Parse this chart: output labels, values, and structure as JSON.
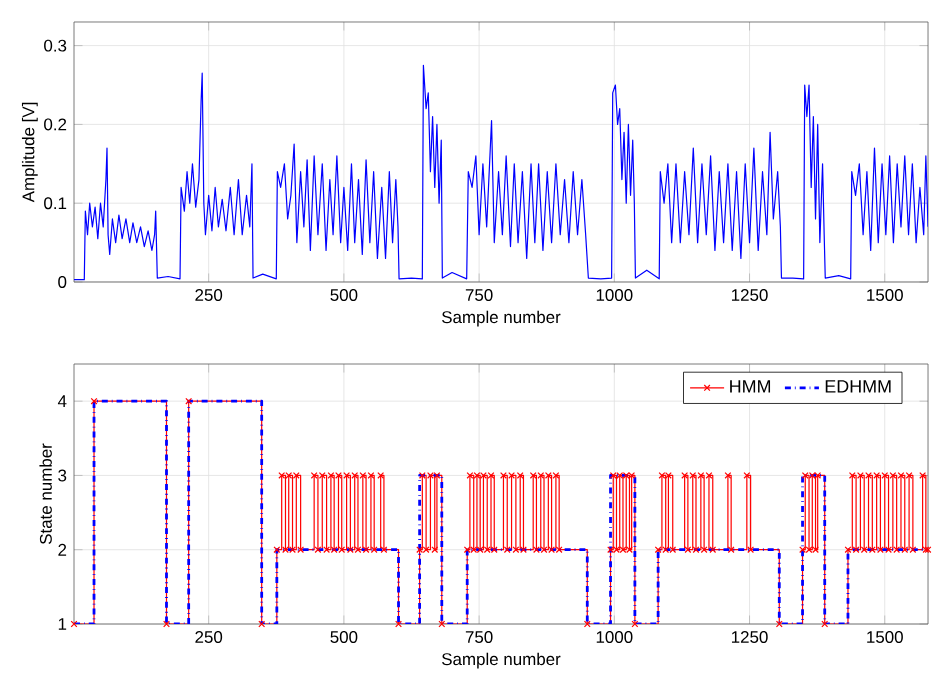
{
  "chart_data": [
    {
      "type": "line",
      "xlabel": "Sample number",
      "ylabel": "Amplitude [V]",
      "color": "#0000ff",
      "xlim": [
        1,
        1580
      ],
      "ylim": [
        0,
        0.33
      ],
      "xticks": [
        250,
        500,
        750,
        1000,
        1250,
        1500
      ],
      "yticks": [
        0,
        0.1,
        0.2,
        0.3
      ],
      "grid": true,
      "x": [
        1,
        20,
        22,
        26,
        30,
        35,
        40,
        45,
        50,
        55,
        60,
        62,
        64,
        67,
        72,
        78,
        84,
        90,
        97,
        104,
        110,
        117,
        124,
        131,
        138,
        145,
        150,
        152,
        155,
        175,
        197,
        199,
        205,
        210,
        215,
        220,
        226,
        232,
        236,
        238,
        241,
        244,
        250,
        256,
        262,
        268,
        275,
        282,
        290,
        297,
        305,
        312,
        320,
        326,
        330,
        332,
        350,
        375,
        377,
        383,
        390,
        396,
        402,
        408,
        413,
        420,
        426,
        432,
        438,
        445,
        452,
        460,
        467,
        474,
        480,
        487,
        494,
        500,
        507,
        514,
        520,
        527,
        534,
        541,
        548,
        555,
        562,
        570,
        577,
        584,
        590,
        596,
        600,
        602,
        625,
        645,
        647,
        652,
        656,
        660,
        664,
        668,
        672,
        676,
        680,
        682,
        700,
        727,
        730,
        737,
        744,
        750,
        757,
        764,
        773,
        778,
        786,
        793,
        800,
        808,
        815,
        822,
        830,
        838,
        846,
        853,
        860,
        868,
        876,
        884,
        892,
        900,
        908,
        916,
        924,
        932,
        940,
        947,
        952,
        975,
        995,
        997,
        1002,
        1006,
        1010,
        1014,
        1018,
        1022,
        1026,
        1030,
        1034,
        1037,
        1039,
        1060,
        1083,
        1085,
        1092,
        1099,
        1106,
        1114,
        1122,
        1130,
        1138,
        1146,
        1154,
        1162,
        1170,
        1178,
        1186,
        1194,
        1202,
        1210,
        1218,
        1226,
        1234,
        1242,
        1250,
        1258,
        1266,
        1274,
        1282,
        1288,
        1294,
        1302,
        1307,
        1309,
        1330,
        1350,
        1352,
        1356,
        1360,
        1364,
        1368,
        1372,
        1376,
        1380,
        1385,
        1388,
        1390,
        1415,
        1437,
        1439,
        1446,
        1453,
        1460,
        1467,
        1474,
        1481,
        1488,
        1495,
        1502,
        1509,
        1516,
        1523,
        1530,
        1537,
        1544,
        1551,
        1558,
        1565,
        1572,
        1576,
        1580
      ],
      "values": [
        0.003,
        0.003,
        0.09,
        0.06,
        0.1,
        0.07,
        0.095,
        0.055,
        0.1,
        0.07,
        0.13,
        0.17,
        0.06,
        0.035,
        0.08,
        0.05,
        0.085,
        0.055,
        0.08,
        0.05,
        0.075,
        0.05,
        0.07,
        0.045,
        0.065,
        0.04,
        0.06,
        0.09,
        0.005,
        0.007,
        0.004,
        0.12,
        0.09,
        0.14,
        0.1,
        0.15,
        0.095,
        0.13,
        0.23,
        0.265,
        0.1,
        0.06,
        0.11,
        0.065,
        0.12,
        0.07,
        0.105,
        0.065,
        0.12,
        0.06,
        0.13,
        0.06,
        0.11,
        0.07,
        0.15,
        0.005,
        0.01,
        0.004,
        0.14,
        0.12,
        0.15,
        0.08,
        0.11,
        0.175,
        0.05,
        0.14,
        0.07,
        0.155,
        0.04,
        0.16,
        0.06,
        0.15,
        0.04,
        0.13,
        0.06,
        0.16,
        0.05,
        0.12,
        0.04,
        0.15,
        0.05,
        0.13,
        0.035,
        0.155,
        0.05,
        0.14,
        0.03,
        0.12,
        0.03,
        0.14,
        0.05,
        0.13,
        0.07,
        0.004,
        0.005,
        0.004,
        0.275,
        0.22,
        0.24,
        0.14,
        0.21,
        0.12,
        0.2,
        0.1,
        0.18,
        0.005,
        0.012,
        0.004,
        0.14,
        0.12,
        0.16,
        0.06,
        0.15,
        0.07,
        0.205,
        0.05,
        0.14,
        0.06,
        0.16,
        0.045,
        0.15,
        0.05,
        0.14,
        0.03,
        0.15,
        0.05,
        0.15,
        0.04,
        0.14,
        0.05,
        0.15,
        0.06,
        0.13,
        0.05,
        0.14,
        0.06,
        0.13,
        0.06,
        0.005,
        0.004,
        0.005,
        0.24,
        0.25,
        0.2,
        0.22,
        0.13,
        0.19,
        0.1,
        0.2,
        0.11,
        0.18,
        0.1,
        0.005,
        0.015,
        0.004,
        0.14,
        0.1,
        0.15,
        0.05,
        0.15,
        0.05,
        0.14,
        0.06,
        0.17,
        0.05,
        0.15,
        0.06,
        0.16,
        0.04,
        0.14,
        0.05,
        0.15,
        0.04,
        0.14,
        0.03,
        0.15,
        0.05,
        0.17,
        0.04,
        0.14,
        0.06,
        0.19,
        0.08,
        0.14,
        0.07,
        0.005,
        0.005,
        0.004,
        0.25,
        0.21,
        0.25,
        0.12,
        0.21,
        0.08,
        0.2,
        0.05,
        0.15,
        0.06,
        0.005,
        0.008,
        0.004,
        0.14,
        0.11,
        0.15,
        0.06,
        0.14,
        0.04,
        0.17,
        0.05,
        0.15,
        0.06,
        0.16,
        0.05,
        0.15,
        0.07,
        0.16,
        0.06,
        0.15,
        0.05,
        0.12,
        0.06,
        0.16,
        0.07
      ]
    },
    {
      "type": "step",
      "xlabel": "Sample number",
      "ylabel": "State number",
      "xlim": [
        1,
        1580
      ],
      "ylim": [
        1,
        4.5
      ],
      "xticks": [
        250,
        500,
        750,
        1000,
        1250,
        1500
      ],
      "yticks": [
        1,
        2,
        3,
        4
      ],
      "grid": true,
      "legend": "top right",
      "series": [
        {
          "name": "HMM",
          "color": "#ff0000",
          "marker": "cross",
          "line_style": "solid",
          "x": [
            1,
            38,
            172,
            213,
            348,
            376,
            385,
            392,
            398,
            405,
            412,
            420,
            445,
            452,
            460,
            468,
            476,
            482,
            490,
            496,
            505,
            512,
            520,
            526,
            535,
            541,
            550,
            556,
            568,
            574,
            601,
            640,
            645,
            652,
            660,
            668,
            672,
            681,
            728,
            733,
            740,
            746,
            752,
            758,
            765,
            772,
            778,
            795,
            802,
            810,
            818,
            826,
            832,
            850,
            856,
            864,
            870,
            878,
            884,
            892,
            898,
            950,
            993,
            998,
            1004,
            1010,
            1016,
            1022,
            1028,
            1032,
            1038,
            1081,
            1088,
            1095,
            1100,
            1108,
            1130,
            1136,
            1145,
            1151,
            1160,
            1166,
            1175,
            1182,
            1210,
            1216,
            1245,
            1252,
            1305,
            1348,
            1353,
            1360,
            1366,
            1372,
            1376,
            1389,
            1432,
            1440,
            1447,
            1455,
            1462,
            1470,
            1477,
            1485,
            1492,
            1500,
            1507,
            1515,
            1522,
            1530,
            1537,
            1545,
            1552,
            1570,
            1576,
            1580
          ],
          "values": [
            1,
            4,
            1,
            4,
            1,
            2,
            3,
            2,
            3,
            2,
            3,
            2,
            3,
            2,
            3,
            2,
            3,
            2,
            3,
            2,
            3,
            2,
            3,
            2,
            3,
            2,
            3,
            2,
            3,
            2,
            1,
            2,
            3,
            2,
            3,
            2,
            3,
            1,
            2,
            3,
            2,
            3,
            2,
            3,
            2,
            3,
            2,
            3,
            2,
            3,
            2,
            3,
            2,
            3,
            2,
            3,
            2,
            3,
            2,
            3,
            2,
            1,
            2,
            3,
            2,
            3,
            2,
            3,
            2,
            3,
            1,
            2,
            3,
            2,
            3,
            2,
            3,
            2,
            3,
            2,
            3,
            2,
            3,
            2,
            3,
            2,
            3,
            2,
            1,
            2,
            3,
            2,
            3,
            2,
            3,
            1,
            2,
            3,
            2,
            3,
            2,
            3,
            2,
            3,
            2,
            3,
            2,
            3,
            2,
            3,
            2,
            3,
            2,
            3,
            2,
            2
          ]
        },
        {
          "name": "EDHMM",
          "color": "#0000ff",
          "marker": "none",
          "line_style": "dashdot",
          "x": [
            1,
            38,
            172,
            213,
            348,
            376,
            601,
            640,
            681,
            728,
            950,
            993,
            1038,
            1081,
            1305,
            1348,
            1389,
            1432,
            1580
          ],
          "values": [
            1,
            4,
            1,
            4,
            1,
            2,
            1,
            3,
            1,
            2,
            1,
            3,
            1,
            2,
            1,
            3,
            1,
            2,
            2
          ]
        }
      ]
    }
  ]
}
